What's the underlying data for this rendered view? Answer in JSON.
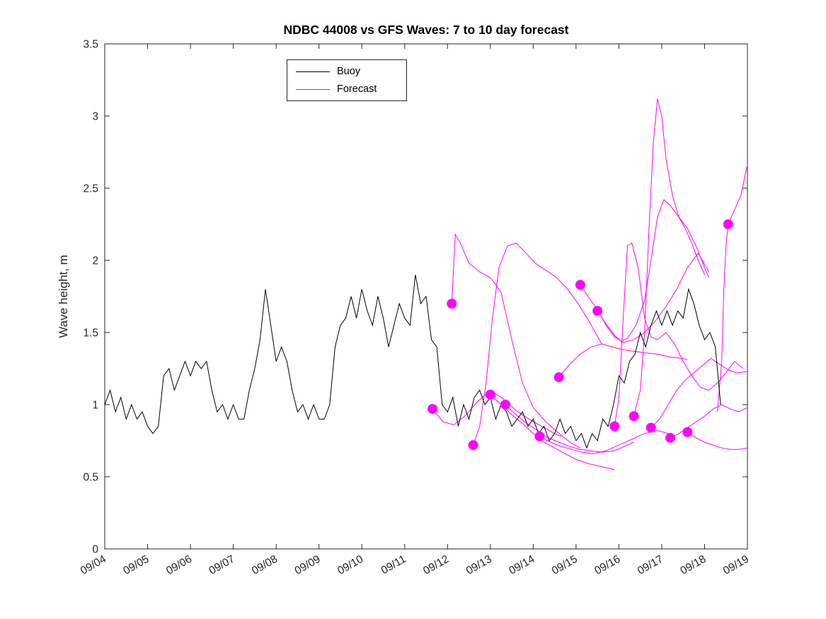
{
  "figure": {
    "title": "NDBC 44008 vs GFS Waves: 7 to 10 day forecast",
    "y_axis_label": "Wave height, m",
    "legend": {
      "items": [
        {
          "label": "Buoy",
          "color": "#000000"
        },
        {
          "label": "Forecast",
          "color": "#ff00ff"
        }
      ]
    }
  },
  "colors": {
    "buoy": "#000000",
    "forecast": "#ff00ff",
    "axis": "#262626"
  },
  "chart_data": {
    "type": "line",
    "title": "NDBC 44008 vs GFS Waves: 7 to 10 day forecast",
    "xlabel": "",
    "ylabel": "Wave height, m",
    "ylim": [
      0,
      3.5
    ],
    "yticks": [
      0,
      0.5,
      1,
      1.5,
      2,
      2.5,
      3,
      3.5
    ],
    "x_domain_days": [
      4,
      19
    ],
    "x_tick_labels": [
      "09/04",
      "09/05",
      "09/06",
      "09/07",
      "09/08",
      "09/09",
      "09/10",
      "09/11",
      "09/12",
      "09/13",
      "09/14",
      "09/15",
      "09/16",
      "09/17",
      "09/18",
      "09/19"
    ],
    "grid": false,
    "legend_position": "top-center",
    "series": [
      {
        "name": "Buoy",
        "color": "#000000",
        "x_start": 4.0,
        "x_step": 0.125,
        "values": [
          1.0,
          1.1,
          0.95,
          1.05,
          0.9,
          1.0,
          0.9,
          0.95,
          0.85,
          0.8,
          0.85,
          1.2,
          1.25,
          1.1,
          1.2,
          1.3,
          1.2,
          1.3,
          1.25,
          1.3,
          1.1,
          0.95,
          1.0,
          0.9,
          1.0,
          0.9,
          0.9,
          1.1,
          1.25,
          1.45,
          1.8,
          1.55,
          1.3,
          1.4,
          1.3,
          1.1,
          0.95,
          1.0,
          0.9,
          1.0,
          0.9,
          0.9,
          1.0,
          1.4,
          1.55,
          1.6,
          1.75,
          1.6,
          1.8,
          1.65,
          1.55,
          1.75,
          1.6,
          1.4,
          1.55,
          1.7,
          1.6,
          1.55,
          1.9,
          1.7,
          1.75,
          1.45,
          1.4,
          1.0,
          0.95,
          1.05,
          0.85,
          1.0,
          0.9,
          1.05,
          1.1,
          1.0,
          1.05,
          0.9,
          1.0,
          0.95,
          0.85,
          0.9,
          0.95,
          0.85,
          0.9,
          0.8,
          0.85,
          0.75,
          0.8,
          0.9,
          0.8,
          0.85,
          0.75,
          0.8,
          0.7,
          0.8,
          0.75,
          0.9,
          0.85,
          1.0,
          1.2,
          1.15,
          1.3,
          1.35,
          1.5,
          1.4,
          1.55,
          1.65,
          1.55,
          1.65,
          1.55,
          1.65,
          1.6,
          1.8,
          1.7,
          1.55,
          1.45,
          1.5,
          1.4,
          1.0
        ]
      },
      {
        "name": "Forecast",
        "color": "#ff00ff",
        "runs": [
          [
            [
              11.65,
              0.97
            ],
            [
              11.9,
              0.88
            ],
            [
              12.15,
              0.86
            ],
            [
              12.4,
              0.92
            ],
            [
              12.7,
              1.02
            ],
            [
              13.0,
              1.1
            ],
            [
              13.3,
              1.04
            ],
            [
              13.6,
              0.96
            ],
            [
              13.9,
              0.9
            ],
            [
              14.2,
              0.85
            ],
            [
              14.5,
              0.8
            ],
            [
              14.65,
              0.78
            ]
          ],
          [
            [
              12.1,
              1.7
            ],
            [
              12.18,
              2.18
            ],
            [
              12.3,
              2.12
            ],
            [
              12.5,
              1.98
            ],
            [
              12.75,
              1.92
            ],
            [
              13.0,
              1.88
            ],
            [
              13.25,
              1.78
            ],
            [
              13.5,
              1.45
            ],
            [
              13.75,
              1.15
            ],
            [
              14.0,
              0.98
            ],
            [
              14.3,
              0.88
            ],
            [
              14.6,
              0.8
            ],
            [
              14.9,
              0.73
            ],
            [
              15.1,
              0.7
            ]
          ],
          [
            [
              12.6,
              0.72
            ],
            [
              12.75,
              0.85
            ],
            [
              12.9,
              1.15
            ],
            [
              13.05,
              1.6
            ],
            [
              13.2,
              1.95
            ],
            [
              13.4,
              2.1
            ],
            [
              13.6,
              2.12
            ],
            [
              13.8,
              2.06
            ],
            [
              14.05,
              1.98
            ],
            [
              14.3,
              1.93
            ],
            [
              14.55,
              1.88
            ],
            [
              14.8,
              1.8
            ],
            [
              15.05,
              1.7
            ],
            [
              15.3,
              1.58
            ],
            [
              15.6,
              1.42
            ]
          ],
          [
            [
              13.0,
              1.07
            ],
            [
              13.25,
              1.0
            ],
            [
              13.5,
              0.93
            ],
            [
              13.75,
              0.87
            ],
            [
              14.0,
              0.8
            ],
            [
              14.25,
              0.74
            ],
            [
              14.5,
              0.7
            ],
            [
              14.75,
              0.66
            ],
            [
              15.0,
              0.62
            ],
            [
              15.3,
              0.59
            ],
            [
              15.6,
              0.57
            ],
            [
              15.9,
              0.55
            ]
          ],
          [
            [
              13.35,
              1.0
            ],
            [
              13.6,
              0.93
            ],
            [
              13.85,
              0.87
            ],
            [
              14.1,
              0.82
            ],
            [
              14.35,
              0.77
            ],
            [
              14.6,
              0.74
            ],
            [
              14.85,
              0.71
            ],
            [
              15.1,
              0.69
            ],
            [
              15.35,
              0.68
            ],
            [
              15.6,
              0.67
            ],
            [
              15.9,
              0.68
            ],
            [
              16.2,
              0.72
            ],
            [
              16.35,
              0.74
            ]
          ],
          [
            [
              14.15,
              0.78
            ],
            [
              14.4,
              0.74
            ],
            [
              14.65,
              0.71
            ],
            [
              14.9,
              0.69
            ],
            [
              15.15,
              0.67
            ],
            [
              15.4,
              0.66
            ],
            [
              15.7,
              0.68
            ],
            [
              16.0,
              0.72
            ],
            [
              16.3,
              0.76
            ],
            [
              16.6,
              0.8
            ],
            [
              16.9,
              0.82
            ],
            [
              17.15,
              0.8
            ]
          ],
          [
            [
              14.6,
              1.19
            ],
            [
              14.85,
              1.28
            ],
            [
              15.1,
              1.35
            ],
            [
              15.35,
              1.4
            ],
            [
              15.6,
              1.42
            ],
            [
              15.85,
              1.4
            ],
            [
              16.1,
              1.38
            ],
            [
              16.35,
              1.37
            ],
            [
              16.6,
              1.36
            ],
            [
              16.9,
              1.35
            ],
            [
              17.2,
              1.33
            ],
            [
              17.5,
              1.32
            ],
            [
              17.6,
              1.31
            ]
          ],
          [
            [
              15.1,
              1.83
            ],
            [
              15.3,
              1.74
            ],
            [
              15.5,
              1.66
            ],
            [
              15.7,
              1.55
            ],
            [
              15.9,
              1.47
            ],
            [
              16.1,
              1.43
            ],
            [
              16.35,
              1.45
            ],
            [
              16.6,
              1.5
            ],
            [
              16.85,
              1.58
            ],
            [
              17.1,
              1.68
            ],
            [
              17.35,
              1.8
            ],
            [
              17.6,
              1.95
            ],
            [
              17.85,
              2.05
            ],
            [
              18.1,
              1.92
            ]
          ],
          [
            [
              15.5,
              1.65
            ],
            [
              15.7,
              1.56
            ],
            [
              15.9,
              1.48
            ],
            [
              16.05,
              1.44
            ],
            [
              16.2,
              1.46
            ],
            [
              16.4,
              1.55
            ],
            [
              16.6,
              1.72
            ],
            [
              16.75,
              2.0
            ],
            [
              16.9,
              2.3
            ],
            [
              17.05,
              2.42
            ],
            [
              17.2,
              2.38
            ],
            [
              17.4,
              2.3
            ],
            [
              17.6,
              2.22
            ],
            [
              17.8,
              2.1
            ],
            [
              18.0,
              1.95
            ],
            [
              18.1,
              1.88
            ]
          ],
          [
            [
              15.9,
              0.85
            ],
            [
              16.0,
              1.05
            ],
            [
              16.1,
              1.6
            ],
            [
              16.2,
              2.1
            ],
            [
              16.3,
              2.12
            ],
            [
              16.45,
              1.95
            ],
            [
              16.6,
              1.6
            ],
            [
              16.75,
              1.47
            ],
            [
              16.9,
              1.45
            ],
            [
              17.1,
              1.5
            ],
            [
              17.3,
              1.42
            ],
            [
              17.5,
              1.3
            ],
            [
              17.7,
              1.2
            ],
            [
              17.9,
              1.12
            ],
            [
              18.1,
              1.1
            ],
            [
              18.3,
              1.15
            ],
            [
              18.5,
              1.22
            ],
            [
              18.7,
              1.3
            ],
            [
              18.9,
              1.25
            ]
          ],
          [
            [
              16.35,
              0.92
            ],
            [
              16.5,
              1.1
            ],
            [
              16.6,
              1.5
            ],
            [
              16.7,
              2.2
            ],
            [
              16.8,
              2.8
            ],
            [
              16.9,
              3.12
            ],
            [
              17.0,
              3.0
            ],
            [
              17.1,
              2.7
            ],
            [
              17.25,
              2.45
            ],
            [
              17.4,
              2.3
            ],
            [
              17.55,
              2.22
            ],
            [
              17.7,
              2.12
            ],
            [
              17.85,
              2.0
            ],
            [
              18.0,
              1.9
            ]
          ],
          [
            [
              16.75,
              0.84
            ],
            [
              16.95,
              0.9
            ],
            [
              17.15,
              1.0
            ],
            [
              17.35,
              1.1
            ],
            [
              17.55,
              1.17
            ],
            [
              17.75,
              1.22
            ],
            [
              17.95,
              1.27
            ],
            [
              18.15,
              1.32
            ],
            [
              18.35,
              1.28
            ],
            [
              18.55,
              1.24
            ],
            [
              18.75,
              1.22
            ],
            [
              19.0,
              1.23
            ]
          ],
          [
            [
              17.2,
              0.77
            ],
            [
              17.4,
              0.8
            ],
            [
              17.6,
              0.84
            ],
            [
              17.8,
              0.88
            ],
            [
              18.0,
              0.92
            ],
            [
              18.2,
              0.97
            ],
            [
              18.4,
              1.0
            ],
            [
              18.6,
              0.97
            ],
            [
              18.8,
              0.95
            ],
            [
              19.0,
              0.98
            ]
          ],
          [
            [
              17.6,
              0.81
            ],
            [
              17.8,
              0.77
            ],
            [
              18.0,
              0.74
            ],
            [
              18.2,
              0.72
            ],
            [
              18.4,
              0.7
            ],
            [
              18.6,
              0.69
            ],
            [
              18.8,
              0.69
            ],
            [
              19.0,
              0.7
            ]
          ],
          [
            [
              18.3,
              0.95
            ],
            [
              18.4,
              1.3
            ],
            [
              18.45,
              1.8
            ],
            [
              18.5,
              2.1
            ],
            [
              18.55,
              2.25
            ],
            [
              18.7,
              2.35
            ],
            [
              18.85,
              2.45
            ],
            [
              18.95,
              2.6
            ],
            [
              19.0,
              2.66
            ]
          ]
        ],
        "markers": [
          [
            11.65,
            0.97
          ],
          [
            12.1,
            1.7
          ],
          [
            12.6,
            0.72
          ],
          [
            13.0,
            1.07
          ],
          [
            13.35,
            1.0
          ],
          [
            14.15,
            0.78
          ],
          [
            14.6,
            1.19
          ],
          [
            15.1,
            1.83
          ],
          [
            15.5,
            1.65
          ],
          [
            15.9,
            0.85
          ],
          [
            16.35,
            0.92
          ],
          [
            16.75,
            0.84
          ],
          [
            17.2,
            0.77
          ],
          [
            17.6,
            0.81
          ],
          [
            18.55,
            2.25
          ]
        ]
      }
    ]
  }
}
